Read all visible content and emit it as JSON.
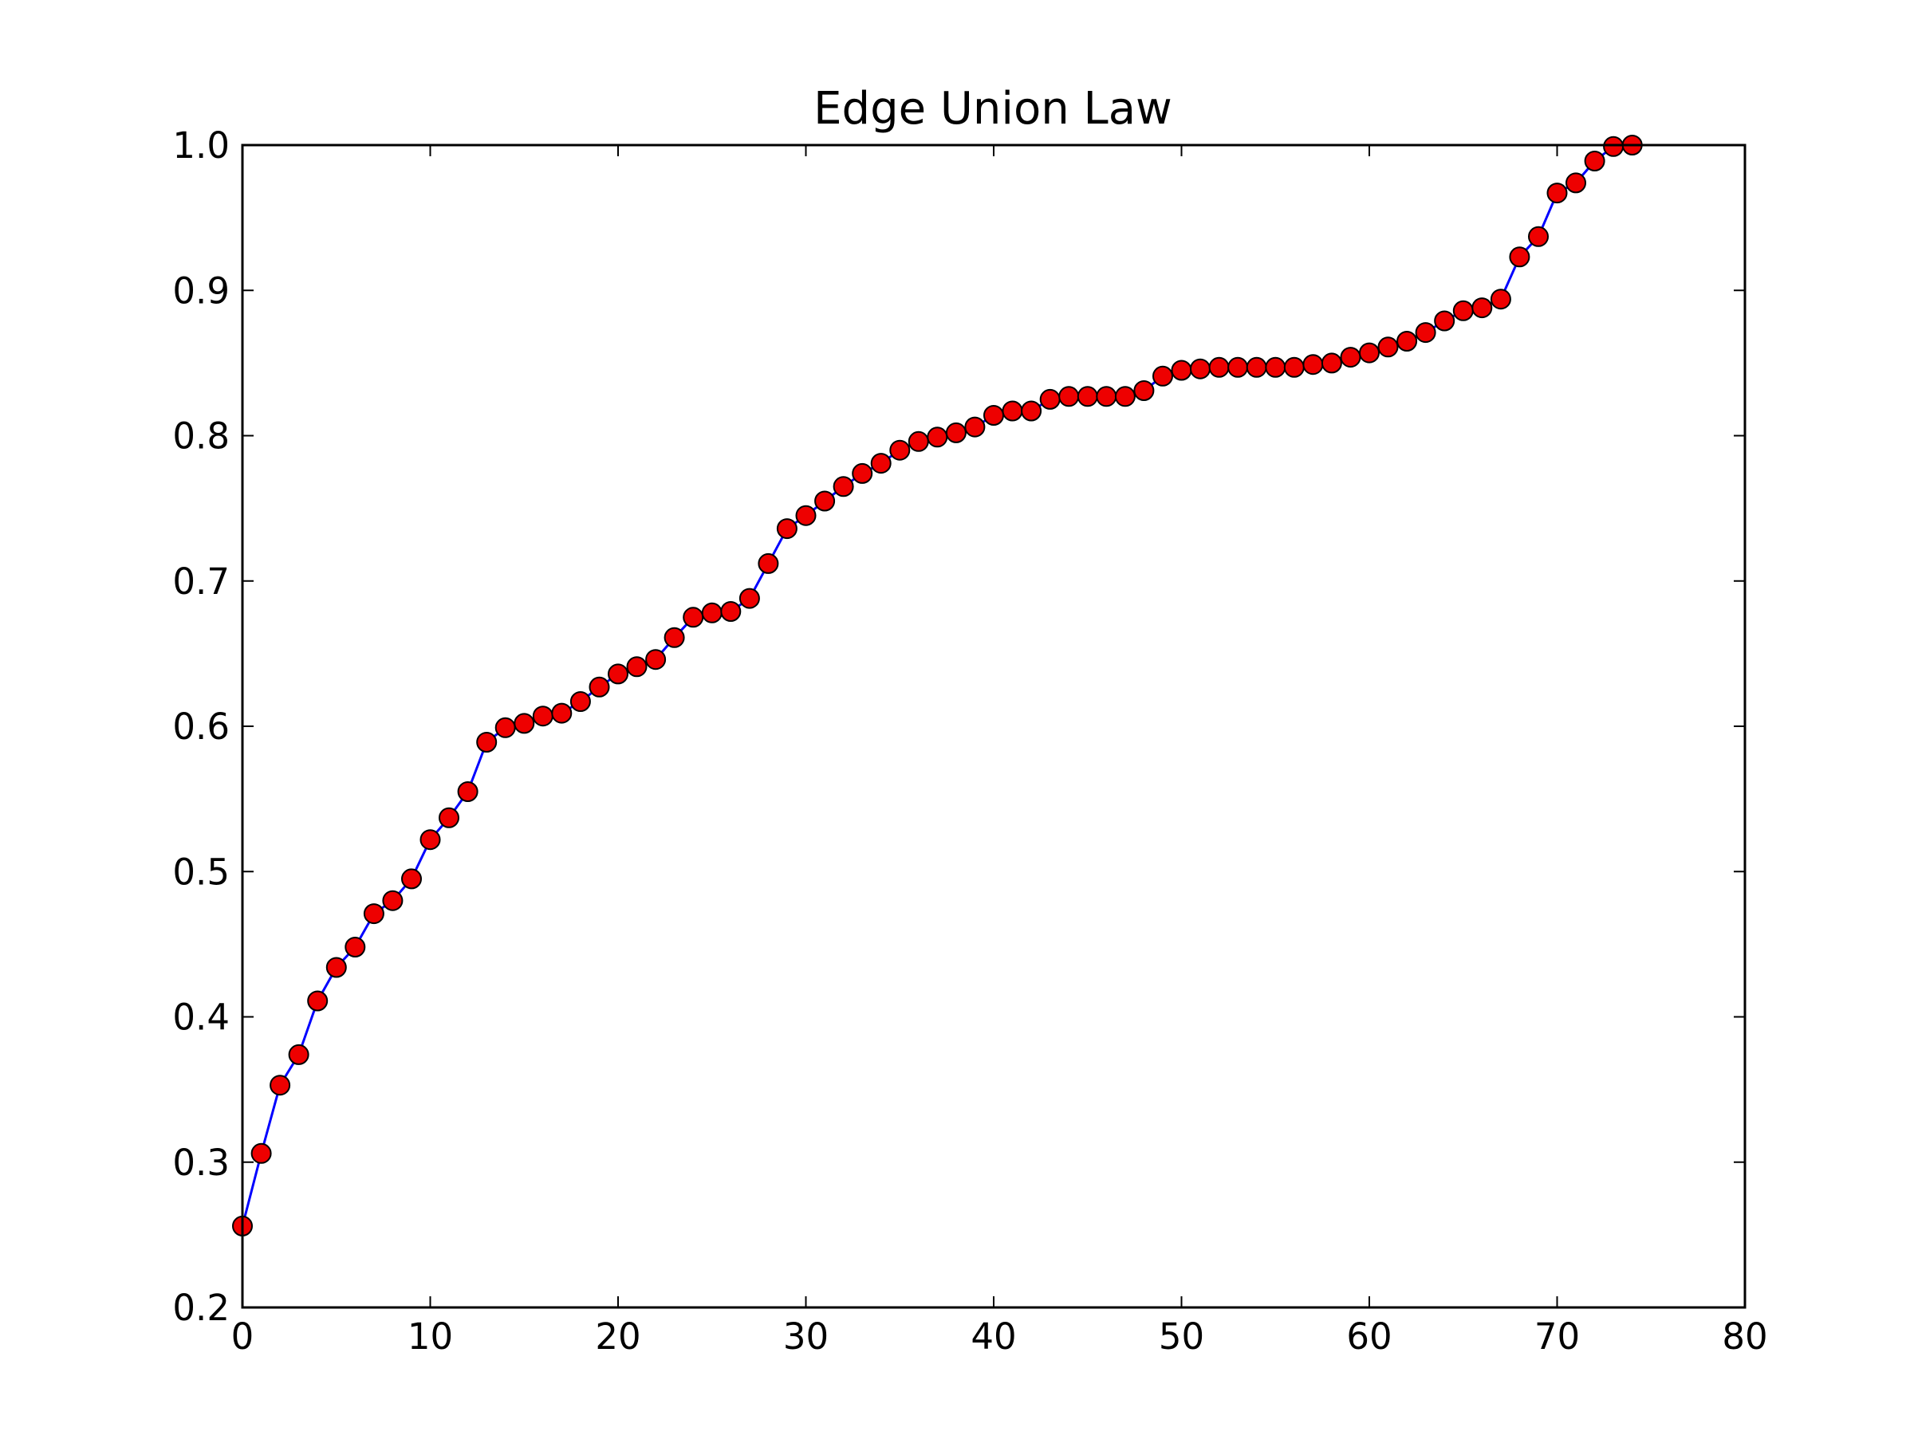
{
  "chart_data": {
    "type": "line",
    "title": "Edge Union Law",
    "xlabel": "",
    "ylabel": "",
    "xlim": [
      0,
      80
    ],
    "ylim": [
      0.2,
      1.0
    ],
    "x_ticks": [
      0,
      10,
      20,
      30,
      40,
      50,
      60,
      70,
      80
    ],
    "x_tick_labels": [
      "0",
      "10",
      "20",
      "30",
      "40",
      "50",
      "60",
      "70",
      "80"
    ],
    "y_ticks": [
      0.2,
      0.3,
      0.4,
      0.5,
      0.6,
      0.7,
      0.8,
      0.9,
      1.0
    ],
    "y_tick_labels": [
      "0.2",
      "0.3",
      "0.4",
      "0.5",
      "0.6",
      "0.7",
      "0.8",
      "0.9",
      "1.0"
    ],
    "grid": false,
    "legend": "none",
    "line_color": "#0000ff",
    "marker_color": "#ee0000",
    "marker_edge_color": "#000000",
    "series": [
      {
        "x": [
          0,
          1,
          2,
          3,
          4,
          5,
          6,
          7,
          8,
          9,
          10,
          11,
          12,
          13,
          14,
          15,
          16,
          17,
          18,
          19,
          20,
          21,
          22,
          23,
          24,
          25,
          26,
          27,
          28,
          29,
          30,
          31,
          32,
          33,
          34,
          35,
          36,
          37,
          38,
          39,
          40,
          41,
          42,
          43,
          44,
          45,
          46,
          47,
          48,
          49,
          50,
          51,
          52,
          53,
          54,
          55,
          56,
          57,
          58,
          59,
          60,
          61,
          62,
          63,
          64,
          65,
          66,
          67,
          68,
          69,
          70,
          71,
          72,
          73,
          74
        ],
        "values": [
          0.256,
          0.306,
          0.353,
          0.374,
          0.411,
          0.434,
          0.448,
          0.471,
          0.48,
          0.495,
          0.522,
          0.537,
          0.555,
          0.589,
          0.599,
          0.602,
          0.607,
          0.609,
          0.617,
          0.627,
          0.636,
          0.641,
          0.646,
          0.661,
          0.675,
          0.678,
          0.679,
          0.688,
          0.712,
          0.736,
          0.745,
          0.755,
          0.765,
          0.774,
          0.781,
          0.79,
          0.796,
          0.799,
          0.802,
          0.806,
          0.814,
          0.817,
          0.817,
          0.825,
          0.827,
          0.827,
          0.827,
          0.827,
          0.831,
          0.841,
          0.845,
          0.846,
          0.847,
          0.847,
          0.847,
          0.847,
          0.847,
          0.849,
          0.85,
          0.854,
          0.857,
          0.861,
          0.865,
          0.871,
          0.879,
          0.886,
          0.888,
          0.894,
          0.923,
          0.937,
          0.967,
          0.974,
          0.989,
          0.999,
          1.0
        ]
      }
    ]
  }
}
